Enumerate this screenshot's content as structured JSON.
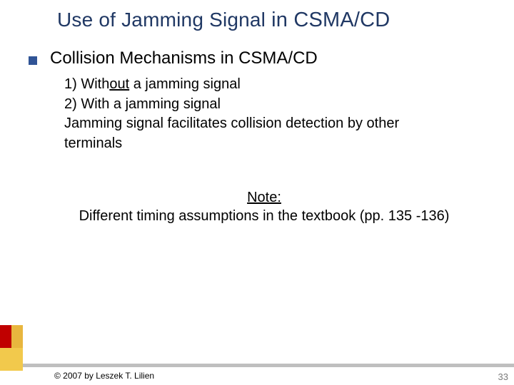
{
  "title": {
    "part1": "Use of Jamming Signal ",
    "part2": "in CSMA/CD"
  },
  "heading": "Collision Mechanisms in CSMA/CD",
  "body": {
    "line1_pre": "1) With",
    "line1_u": "out",
    "line1_post": " a jamming signal",
    "line2": "2) With a jamming signal",
    "line3": "Jamming signal facilitates collision detection by other",
    "line4": "terminals"
  },
  "note": {
    "label": "Note:",
    "text": "Different timing assumptions in the textbook (pp. 135 -136)"
  },
  "copyright": "© 2007 by Leszek T. Lilien",
  "page_number": "33",
  "colors": {
    "title": "#203864",
    "bullet": "#305496",
    "bar": "#bfbfbf",
    "deco_red": "#c00000",
    "deco_gold": "#f2c94c",
    "pagenum": "#7b7b7b"
  }
}
